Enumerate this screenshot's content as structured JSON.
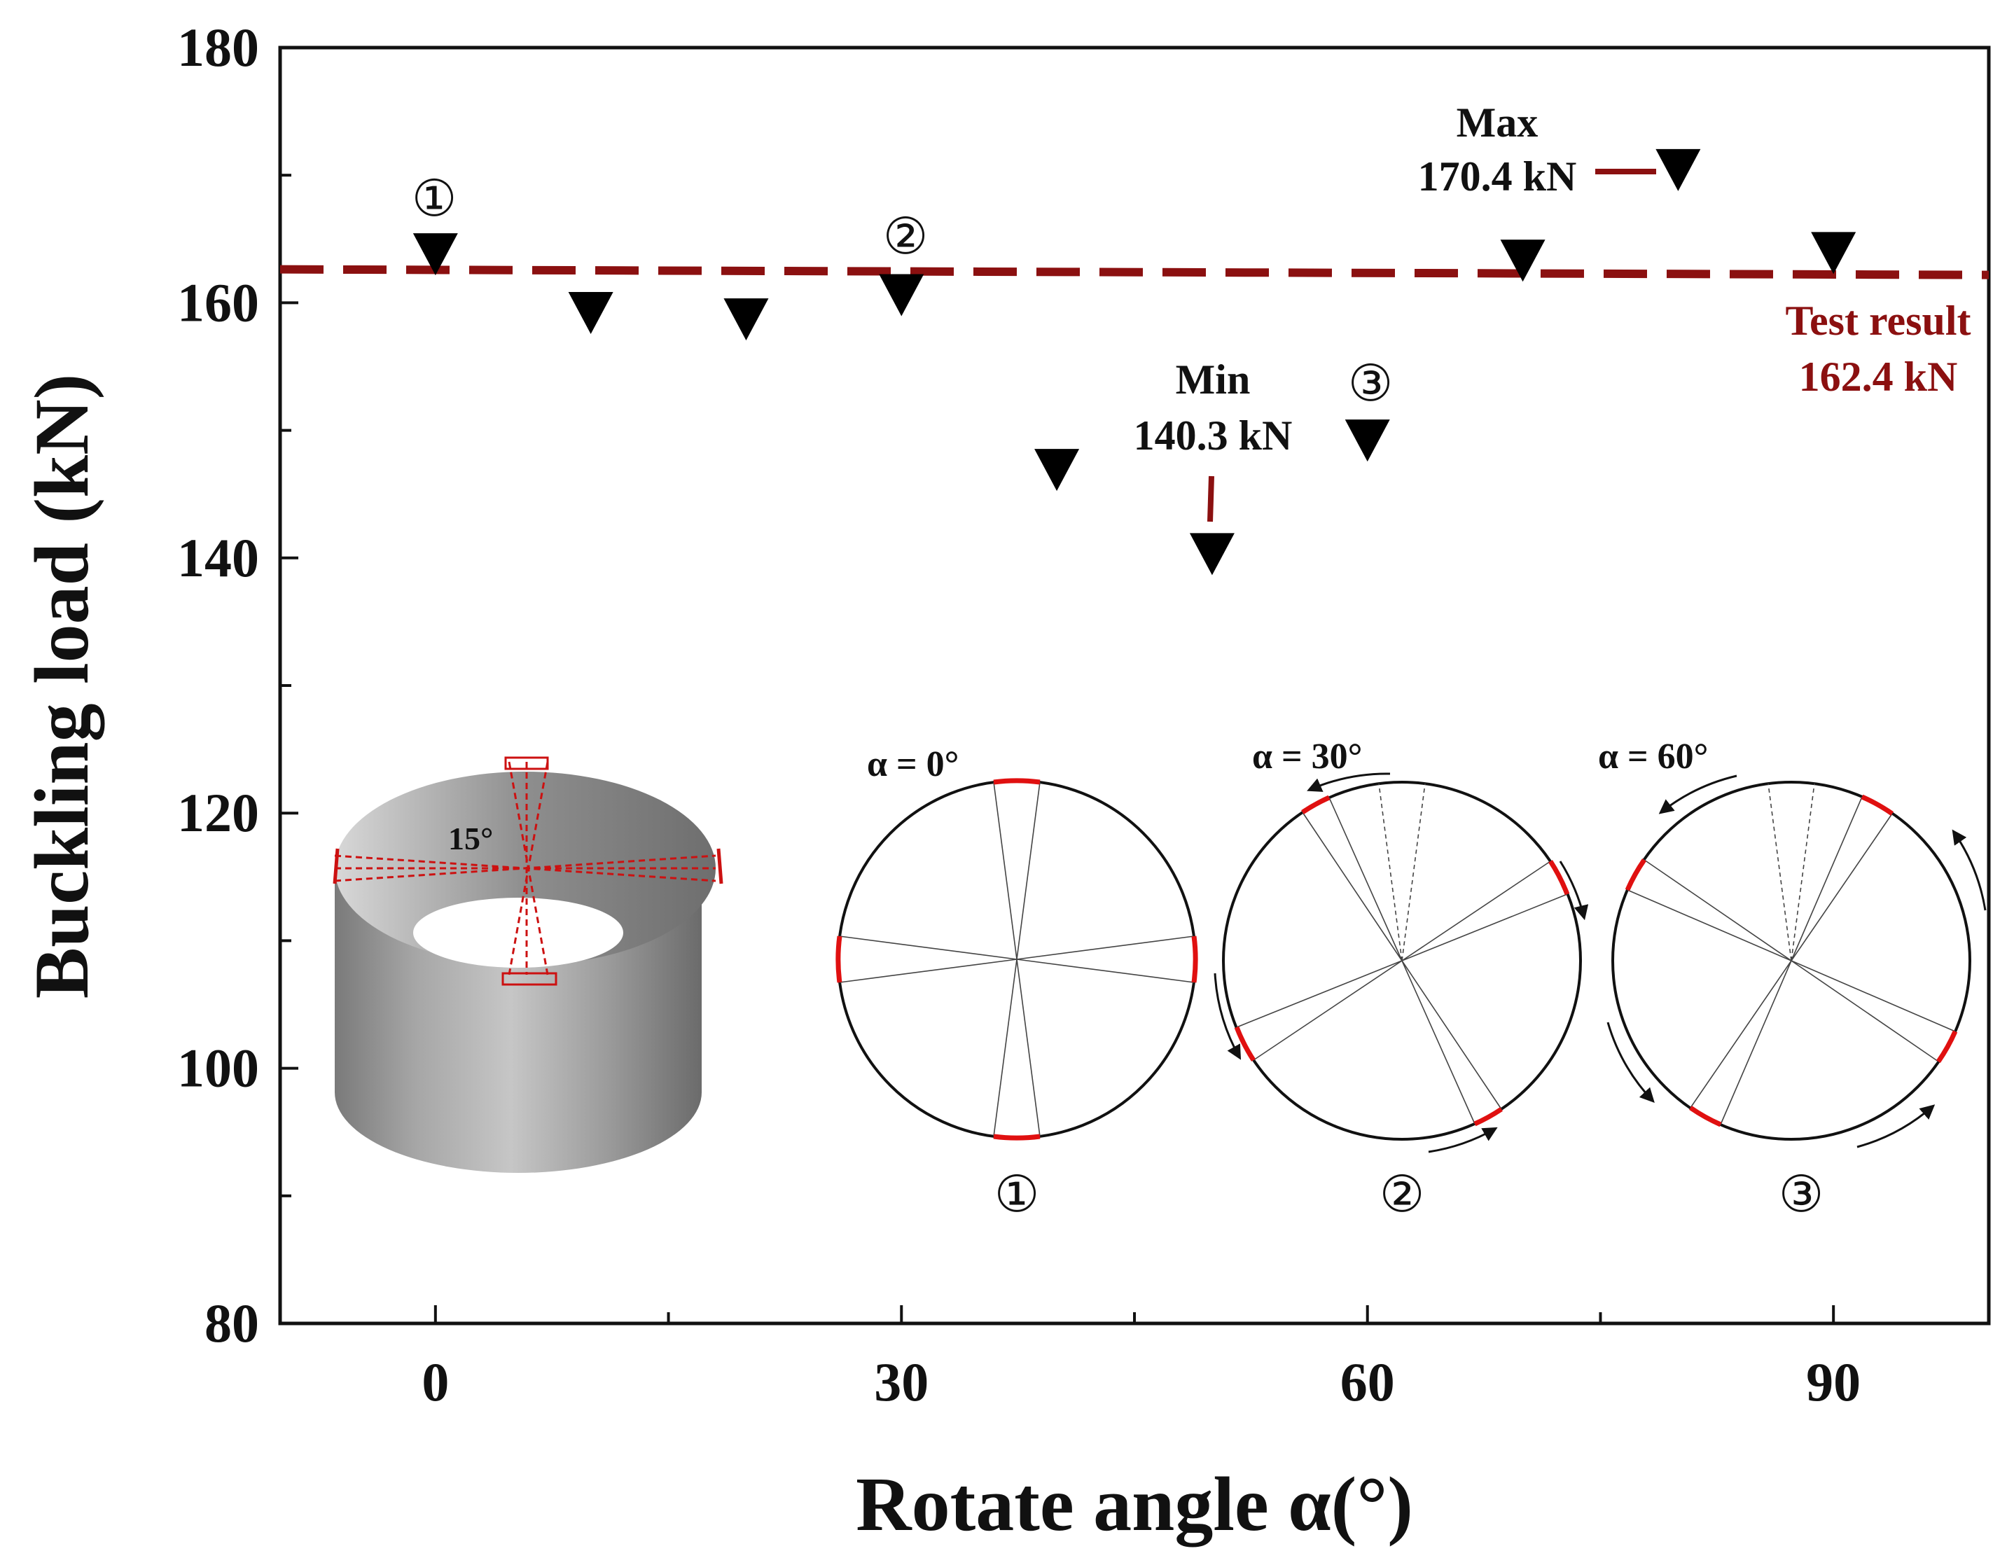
{
  "chart_data": {
    "type": "scatter",
    "title": "",
    "xlabel": "Rotate angle α(°)",
    "ylabel": "Buckling load (kN)",
    "xlim": [
      -10,
      100
    ],
    "ylim": [
      80,
      180
    ],
    "x_ticks": [
      0,
      30,
      60,
      90
    ],
    "x_tick_labels": [
      "0",
      "30",
      "60",
      "90"
    ],
    "y_ticks": [
      80,
      100,
      120,
      140,
      160,
      180
    ],
    "y_tick_labels": [
      "80",
      "100",
      "120",
      "140",
      "160",
      "180"
    ],
    "grid": false,
    "series": [
      {
        "name": "Buckling load",
        "marker": "down-triangle",
        "color": "#000000",
        "x": [
          0,
          10,
          20,
          30,
          40,
          50,
          60,
          70,
          80,
          90
        ],
        "y": [
          163.8,
          159.2,
          158.7,
          160.6,
          146.9,
          140.3,
          149.2,
          163.3,
          170.4,
          163.9
        ]
      }
    ],
    "reference_line": {
      "name": "Test result",
      "value": 162.4,
      "style": "dashed",
      "color": "#8b1010"
    },
    "annotations": {
      "circled_one": "①",
      "circled_two": "②",
      "circled_three": "③",
      "max_title": "Max",
      "max_value": "170.4 kN",
      "min_title": "Min",
      "min_value": "140.3 kN",
      "test_title": "Test result",
      "test_value": "162.4 kN"
    },
    "insets": {
      "cylinder_angle": "15°",
      "alpha0": "α = 0°",
      "alpha30": "α = 30°",
      "alpha60": "α = 60°",
      "label_one": "①",
      "label_two": "②",
      "label_three": "③"
    }
  }
}
